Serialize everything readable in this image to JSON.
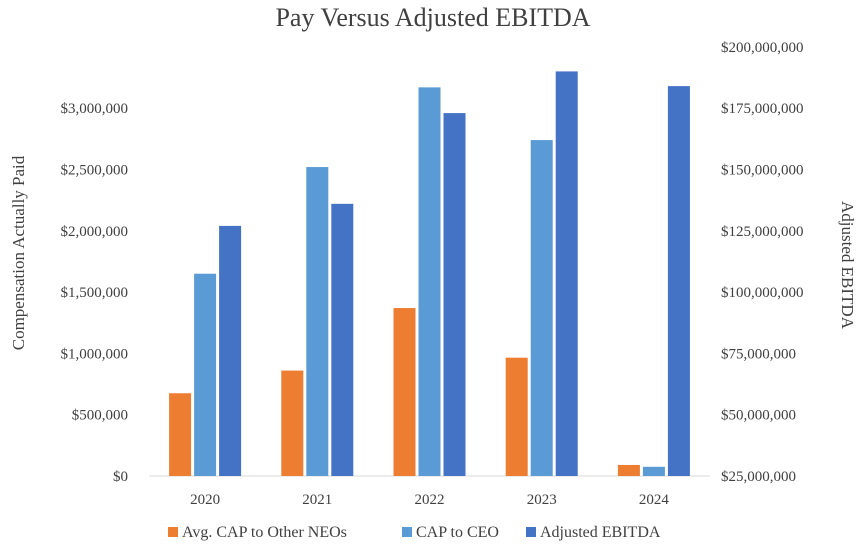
{
  "chart_data": {
    "type": "bar",
    "title": "Pay Versus Adjusted EBITDA",
    "categories": [
      "2020",
      "2021",
      "2022",
      "2023",
      "2024"
    ],
    "y_left": {
      "label": "Compensation Actually Paid",
      "min": 0,
      "max": 3500000,
      "ticks": [
        0,
        500000,
        1000000,
        1500000,
        2000000,
        2500000,
        3000000
      ],
      "tick_labels": [
        "$0",
        "$500,000",
        "$1,000,000",
        "$1,500,000",
        "$2,000,000",
        "$2,500,000",
        "$3,000,000"
      ]
    },
    "y_right": {
      "label": "Adjusted  EBITDA",
      "min": 25000000,
      "max": 200000000,
      "ticks": [
        25000000,
        50000000,
        75000000,
        100000000,
        125000000,
        150000000,
        175000000,
        200000000
      ],
      "tick_labels": [
        "$25,000,000",
        "$50,000,000",
        "$75,000,000",
        "$100,000,000",
        "$125,000,000",
        "$150,000,000",
        "$175,000,000",
        "$200,000,000"
      ]
    },
    "series": [
      {
        "name": "Avg. CAP to Other NEOs",
        "axis": "left",
        "color": "#ED7D31",
        "values": [
          675000,
          860000,
          1370000,
          965000,
          90000
        ]
      },
      {
        "name": "CAP to CEO",
        "axis": "left",
        "color": "#5B9BD5",
        "values": [
          1650000,
          2520000,
          3170000,
          2740000,
          75000
        ]
      },
      {
        "name": "Adjusted EBITDA",
        "axis": "right",
        "color": "#4472C4",
        "values": [
          127000000,
          136000000,
          173000000,
          190000000,
          184000000
        ]
      }
    ],
    "legend_position": "bottom",
    "grid": false
  }
}
